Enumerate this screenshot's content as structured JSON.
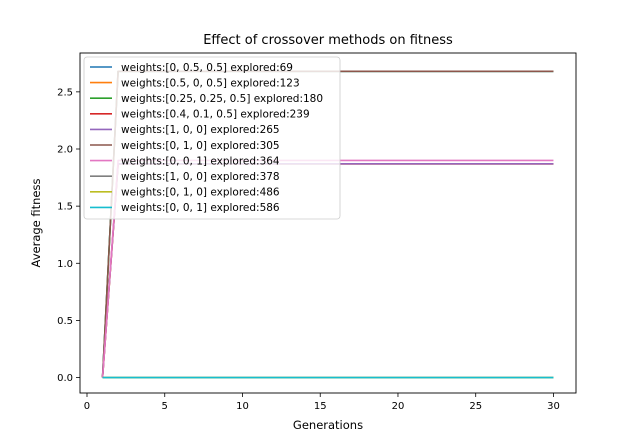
{
  "chart_data": {
    "type": "line",
    "title": "Effect of crossover methods on fitness",
    "xlabel": "Generations",
    "ylabel": "Average fitness",
    "xlim": [
      -0.45,
      31.45
    ],
    "ylim": [
      -0.135,
      2.84
    ],
    "xticks": [
      0,
      5,
      10,
      15,
      20,
      25,
      30
    ],
    "yticks": [
      0.0,
      0.5,
      1.0,
      1.5,
      2.0,
      2.5
    ],
    "ytick_labels": [
      "0.0",
      "0.5",
      "1.0",
      "1.5",
      "2.0",
      "2.5"
    ],
    "grid": false,
    "legend_position": "upper-left",
    "series": [
      {
        "name": "weights:[0, 0.5, 0.5] explored:69",
        "color": "#1f77b4",
        "x": [
          1,
          2,
          30
        ],
        "y": [
          0,
          2.68,
          2.68
        ]
      },
      {
        "name": "weights:[0.5, 0, 0.5] explored:123",
        "color": "#ff7f0e",
        "x": [
          1,
          2,
          30
        ],
        "y": [
          0,
          1.87,
          1.87
        ]
      },
      {
        "name": "weights:[0.25, 0.25, 0.5] explored:180",
        "color": "#2ca02c",
        "x": [
          1,
          2,
          30
        ],
        "y": [
          0,
          2.68,
          2.68
        ]
      },
      {
        "name": "weights:[0.4, 0.1, 0.5] explored:239",
        "color": "#d62728",
        "x": [
          1,
          2,
          30
        ],
        "y": [
          0,
          1.87,
          1.87
        ]
      },
      {
        "name": "weights:[1, 0, 0] explored:265",
        "color": "#9467bd",
        "x": [
          1,
          2,
          30
        ],
        "y": [
          0,
          1.87,
          1.87
        ]
      },
      {
        "name": "weights:[0, 1, 0] explored:305",
        "color": "#8c564b",
        "x": [
          1,
          2,
          30
        ],
        "y": [
          0,
          2.68,
          2.68
        ]
      },
      {
        "name": "weights:[0, 0, 1] explored:364",
        "color": "#e377c2",
        "x": [
          1,
          2,
          30
        ],
        "y": [
          0,
          1.9,
          1.9
        ]
      },
      {
        "name": "weights:[1, 0, 0] explored:378",
        "color": "#7f7f7f",
        "x": [
          1,
          30
        ],
        "y": [
          0,
          0
        ]
      },
      {
        "name": "weights:[0, 1, 0] explored:486",
        "color": "#bcbd22",
        "x": [
          1,
          30
        ],
        "y": [
          0,
          0
        ]
      },
      {
        "name": "weights:[0, 0, 1] explored:586",
        "color": "#17becf",
        "x": [
          1,
          30
        ],
        "y": [
          0,
          0
        ]
      }
    ]
  }
}
